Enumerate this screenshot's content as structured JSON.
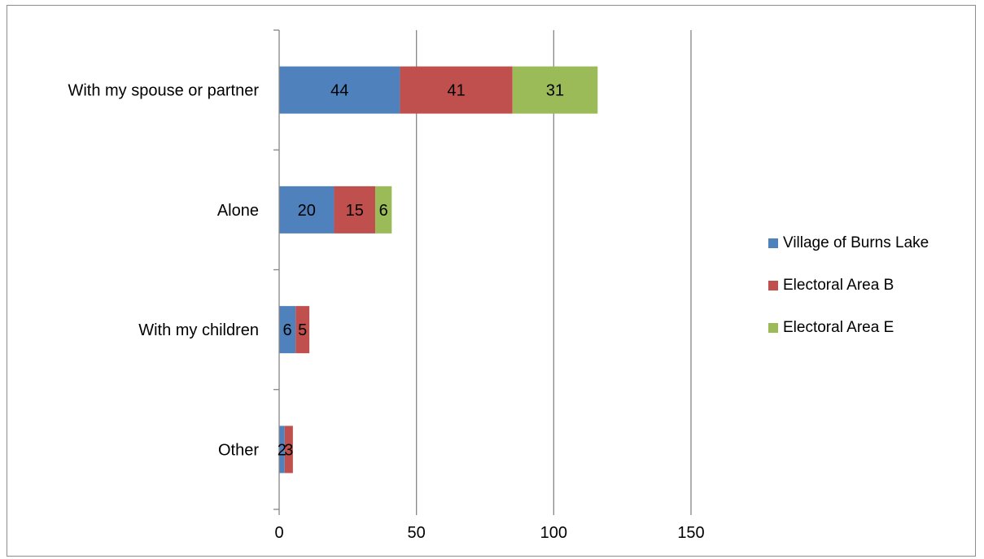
{
  "chart_data": {
    "type": "bar",
    "orientation": "horizontal",
    "stacked": true,
    "categories": [
      "With my spouse or partner",
      "Alone",
      "With my children",
      "Other"
    ],
    "series": [
      {
        "name": "Village of Burns Lake",
        "color": "#4F81BD",
        "values": [
          44,
          20,
          6,
          2
        ]
      },
      {
        "name": "Electoral Area B",
        "color": "#C0504D",
        "values": [
          41,
          15,
          5,
          3
        ]
      },
      {
        "name": "Electoral Area E",
        "color": "#9BBB59",
        "values": [
          31,
          6,
          null,
          null
        ]
      }
    ],
    "xlim": [
      0,
      150
    ],
    "xticks": [
      0,
      50,
      100,
      150
    ],
    "grid": "vertical",
    "legend_position": "right"
  }
}
